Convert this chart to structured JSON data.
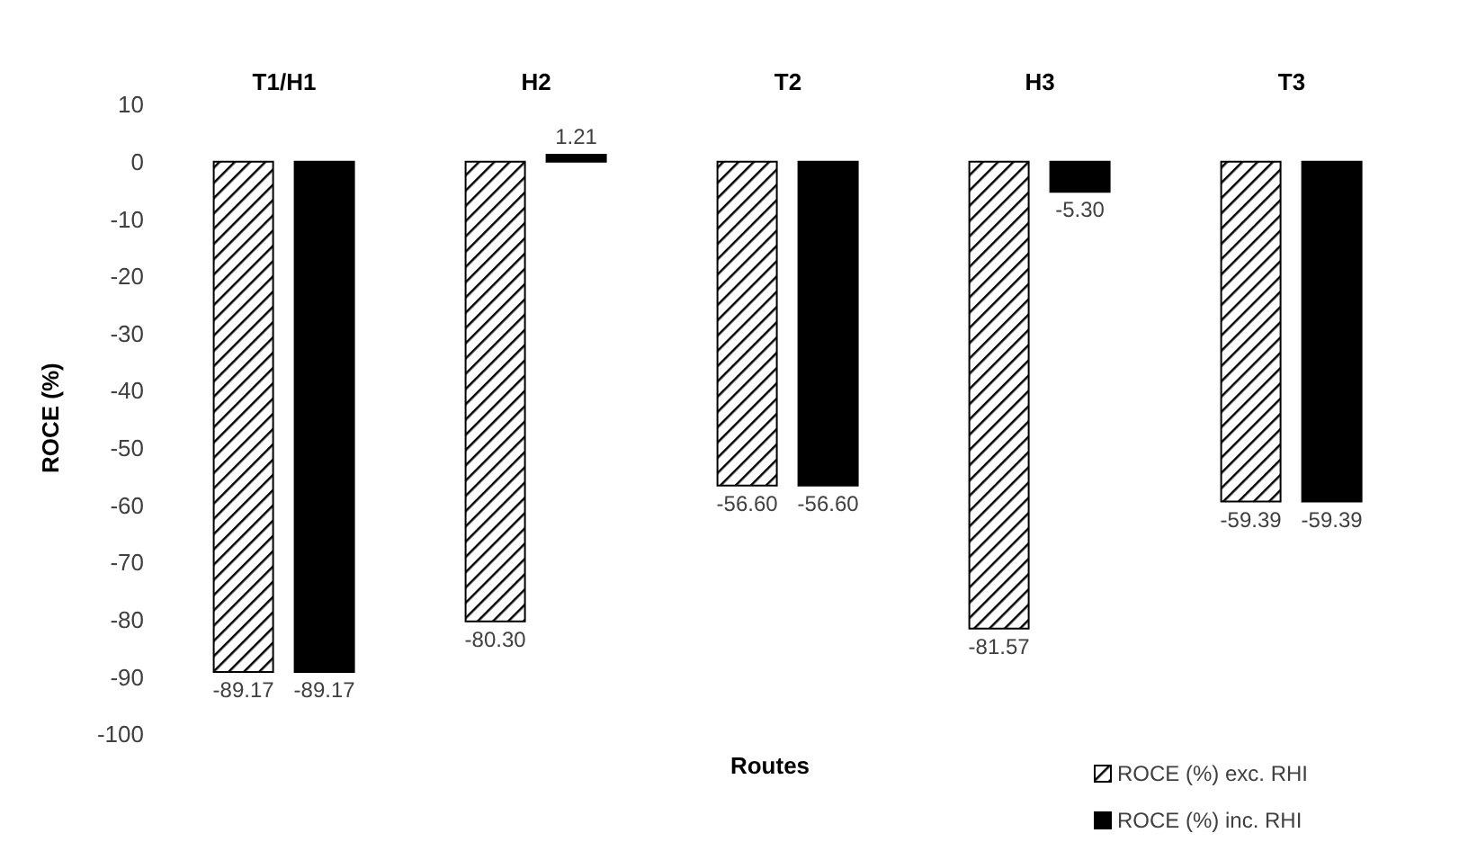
{
  "chart_data": {
    "type": "bar",
    "xlabel": "Routes",
    "ylabel": "ROCE (%)",
    "categories": [
      "T1/H1",
      "H2",
      "T2",
      "H3",
      "T3"
    ],
    "series": [
      {
        "name": "ROCE (%) exc. RHI",
        "color": "#000000",
        "values": [
          -89.17,
          -80.3,
          -56.6,
          -81.57,
          -59.39
        ],
        "value_labels": [
          "-89.17",
          "-80.30",
          "-56.60",
          "-81.57",
          "-59.39"
        ]
      },
      {
        "name": "ROCE (%) inc. RHI",
        "color": "#000000",
        "values": [
          -89.17,
          1.21,
          -56.6,
          -5.3,
          -59.39
        ],
        "value_labels": [
          "-89.17",
          "1.21",
          "-56.60",
          "-5.30",
          "-59.39"
        ]
      }
    ],
    "ylim": [
      -100,
      10
    ],
    "yticks": [
      -100,
      -90,
      -80,
      -70,
      -60,
      -50,
      -40,
      -30,
      -20,
      -10,
      0,
      10
    ],
    "legend": "bottom right"
  }
}
